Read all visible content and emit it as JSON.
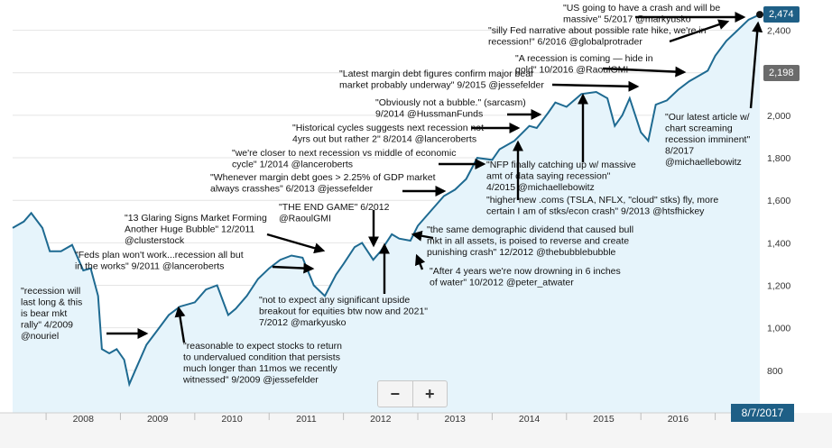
{
  "colors": {
    "line": "#1e6a91",
    "area": "#e6f4fb",
    "arrow": "#000000",
    "badge_current": "#1e5f86",
    "badge_ref": "#6b6b6b"
  },
  "chart_data": {
    "type": "area",
    "title": "",
    "xlabel": "",
    "ylabel": "",
    "ylim": [
      600,
      2500
    ],
    "y_ticks": [
      800,
      1000,
      1200,
      1400,
      1600,
      1800,
      2000,
      2200,
      2400
    ],
    "y_tick_labels": [
      "800",
      "1,000",
      "1,200",
      "1,400",
      "1,600",
      "1,800",
      "2,000",
      "2,200",
      "2,400"
    ],
    "x_range": [
      2007.55,
      2017.6
    ],
    "x_ticks": [
      "2008",
      "2009",
      "2010",
      "2011",
      "2012",
      "2013",
      "2014",
      "2015",
      "2016",
      "2017"
    ],
    "grid": true,
    "series": [
      {
        "x": [
          2007.55,
          2007.7,
          2007.8,
          2007.95,
          2008.05,
          2008.2,
          2008.35,
          2008.5,
          2008.6,
          2008.7,
          2008.75,
          2008.85,
          2008.95,
          2009.05,
          2009.12,
          2009.2,
          2009.35,
          2009.5,
          2009.65,
          2009.8,
          2010.0,
          2010.15,
          2010.3,
          2010.45,
          2010.55,
          2010.7,
          2010.85,
          2011.0,
          2011.15,
          2011.3,
          2011.45,
          2011.6,
          2011.75,
          2011.9,
          2012.0,
          2012.15,
          2012.25,
          2012.4,
          2012.5,
          2012.65,
          2012.75,
          2012.9,
          2013.0,
          2013.2,
          2013.35,
          2013.5,
          2013.65,
          2013.8,
          2014.0,
          2014.1,
          2014.3,
          2014.5,
          2014.6,
          2014.75,
          2014.85,
          2015.0,
          2015.2,
          2015.4,
          2015.55,
          2015.65,
          2015.75,
          2015.85,
          2016.0,
          2016.1,
          2016.2,
          2016.35,
          2016.5,
          2016.65,
          2016.8,
          2016.9,
          2017.0,
          2017.15,
          2017.3,
          2017.45,
          2017.6
        ],
        "values": [
          1470,
          1500,
          1540,
          1470,
          1360,
          1360,
          1390,
          1270,
          1280,
          1150,
          900,
          880,
          900,
          850,
          735,
          800,
          920,
          990,
          1060,
          1100,
          1120,
          1180,
          1200,
          1060,
          1090,
          1150,
          1230,
          1280,
          1320,
          1340,
          1330,
          1200,
          1150,
          1250,
          1300,
          1380,
          1400,
          1320,
          1360,
          1440,
          1420,
          1410,
          1480,
          1560,
          1620,
          1650,
          1700,
          1800,
          1790,
          1840,
          1880,
          1950,
          1940,
          2010,
          2060,
          2040,
          2100,
          2110,
          2080,
          1950,
          2000,
          2080,
          1920,
          1880,
          2050,
          2070,
          2120,
          2160,
          2190,
          2210,
          2280,
          2350,
          2400,
          2450,
          2474
        ]
      }
    ],
    "price_labels": [
      "2,474",
      "2,198"
    ],
    "date_label": "8/7/2017",
    "annotations": [
      {
        "lines": [
          "\"US going to have a crash and will be",
          "massive\" 5/2017 @markyusko"
        ]
      },
      {
        "lines": [
          "\"silly Fed narrative about possible rate hike, we're in",
          "recession!\" 6/2016 @globalprotrader"
        ]
      },
      {
        "lines": [
          "\"A recession is coming — hide in",
          "gold\" 10/2016 @RaoulGMI"
        ]
      },
      {
        "lines": [
          "\"Latest margin debt figures confirm major bear",
          "market probably underway\" 9/2015 @jessefelder"
        ]
      },
      {
        "lines": [
          "\"Obviously not a bubble.\" (sarcasm)",
          "9/2014 @HussmanFunds"
        ]
      },
      {
        "lines": [
          "\"Historical cycles suggests next recession not",
          "4yrs out but rather 2\" 8/2014 @lanceroberts"
        ]
      },
      {
        "lines": [
          "\"we're closer to next recession vs middle of economic",
          "cycle\" 1/2014 @lanceroberts"
        ]
      },
      {
        "lines": [
          "\"Whenever margin debt goes > 2.25% of GDP market",
          "always crasshes\" 6/2013 @jessefelder"
        ]
      },
      {
        "lines": [
          "\"Our latest article w/",
          "chart screaming",
          "recession imminent\"",
          "8/2017",
          "@michaellebowitz"
        ]
      },
      {
        "lines": [
          "\"NFP finally catching up w/ massive",
          "amt of data saying recession\"",
          "4/2015 @michaellebowitz"
        ]
      },
      {
        "lines": [
          "\"higher new .coms (TSLA, NFLX, \"cloud\" stks) fly, more",
          "certain I am of stks/econ crash\" 9/2013 @htsfhickey"
        ]
      },
      {
        "lines": [
          "\"THE END GAME\" 6/2012",
          "@RaoulGMI"
        ]
      },
      {
        "lines": [
          "\"13 Glaring Signs Market Forming",
          "Another Huge Bubble\" 12/2011",
          "@clusterstock"
        ]
      },
      {
        "lines": [
          "\"Feds plan won't work...recession all but",
          "in the works\" 9/2011 @lanceroberts"
        ]
      },
      {
        "lines": [
          "\"the same demographic dividend that caused bull",
          "mkt  in all assets, is poised to reverse and create",
          "punishing crash\" 12/2012 @thebubblebubble"
        ]
      },
      {
        "lines": [
          "\"After 4 years we're now drowning in 6 inches",
          "of water\" 10/2012 @peter_atwater"
        ]
      },
      {
        "lines": [
          "\"recession will",
          "last long & this",
          "is bear mkt",
          "rally\" 4/2009",
          "@nouriel"
        ]
      },
      {
        "lines": [
          "\"not to expect any significant upside",
          "breakout for equities btw now and 2021\"",
          "7/2012 @markyusko"
        ]
      },
      {
        "lines": [
          "\"reasonable to expect stocks to return",
          "to undervalued condition that persists",
          "much longer than 11mos we recently",
          "witnessed\" 9/2009 @jessefelder"
        ]
      }
    ]
  },
  "zoom": {
    "minus_label": "−",
    "plus_label": "+"
  }
}
